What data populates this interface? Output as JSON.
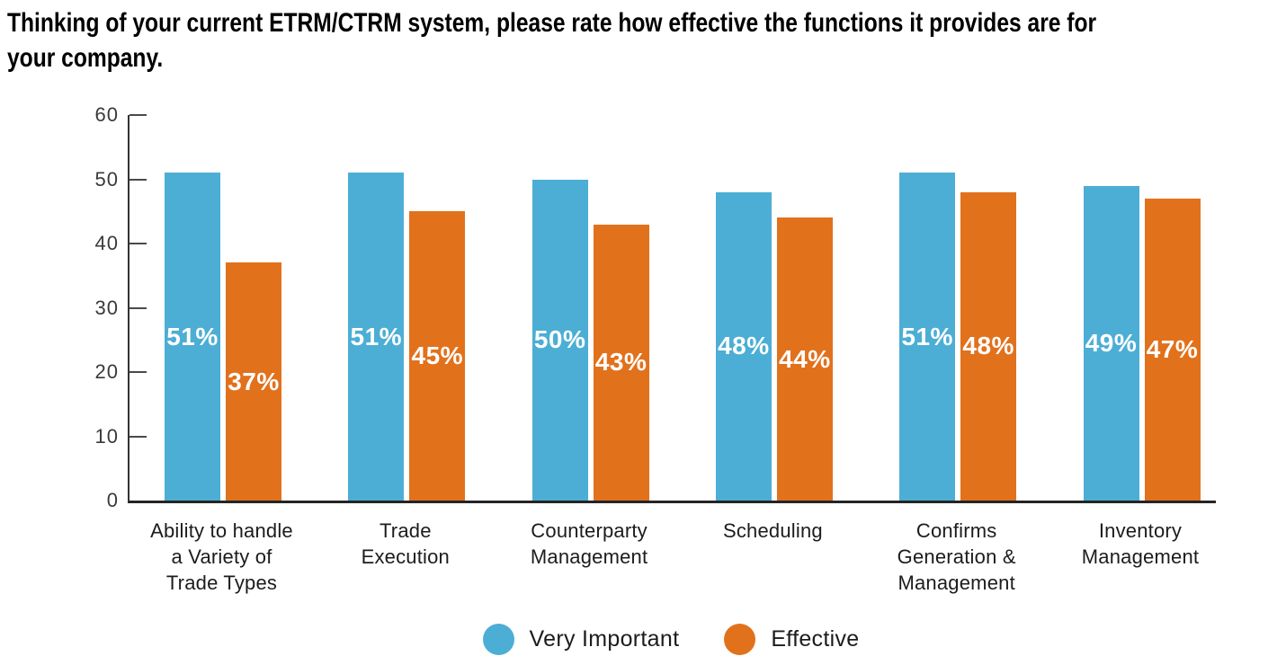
{
  "title": "Thinking of your current ETRM/CTRM system, please rate how effective the functions it provides are for\nyour company.",
  "chart_data": {
    "type": "bar",
    "title": "Thinking of your current ETRM/CTRM system, please rate how effective the functions it provides are for your company.",
    "categories": [
      "Ability to handle\na Variety of\nTrade Types",
      "Trade\nExecution",
      "Counterparty\nManagement",
      "Scheduling",
      "Confirms\nGeneration &\nManagement",
      "Inventory\nManagement"
    ],
    "series": [
      {
        "name": "Very Important",
        "color": "#4CAED5",
        "values": [
          51,
          51,
          50,
          48,
          51,
          49
        ]
      },
      {
        "name": "Effective",
        "color": "#E2711C",
        "values": [
          37,
          45,
          43,
          44,
          48,
          47
        ]
      }
    ],
    "value_suffix": "%",
    "value_labels": "inside-middle-white",
    "xlabel": "",
    "ylabel": "",
    "ylim": [
      0,
      60
    ],
    "yticks": [
      0,
      10,
      20,
      30,
      40,
      50,
      60
    ],
    "grid": false,
    "legend_position": "bottom",
    "colors": {
      "axis": "#333333",
      "tick": "#4a4a4a",
      "axis_text": "#3a3a3a",
      "category_text": "#1c1c1c",
      "value_text": "#ffffff"
    }
  }
}
